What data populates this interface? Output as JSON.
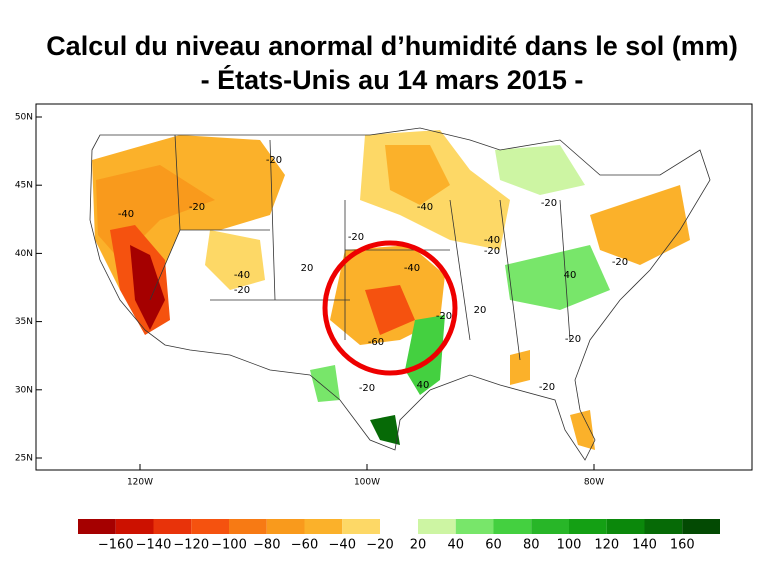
{
  "header": {
    "title_line1": "Calcul du niveau anormal d’humidité dans le sol (mm)",
    "title_line2": "- États-Unis au 14 mars 2015 -"
  },
  "map": {
    "lat_labels": [
      "50N",
      "45N",
      "40N",
      "35N",
      "30N",
      "25N"
    ],
    "lon_labels": [
      "120W",
      "100W",
      "80W"
    ],
    "contour_labels": [
      "-40",
      "-20",
      "-20",
      "-40",
      "-20",
      "20",
      "-20",
      "-40",
      "-40",
      "-40",
      "-20",
      "-20",
      "40",
      "-20",
      "-20",
      "20",
      "-60",
      "-20",
      "40",
      "-20",
      "-20"
    ]
  },
  "legend": {
    "negative": {
      "colors": [
        "#a50000",
        "#cc1100",
        "#e8330a",
        "#f5520f",
        "#f77a14",
        "#f99a1c",
        "#fbb12a",
        "#fdd866"
      ],
      "labels": [
        "−160",
        "−140",
        "−120",
        "−100",
        "−80",
        "−60",
        "−40",
        "−20"
      ]
    },
    "positive": {
      "colors": [
        "#cdf5a3",
        "#78e66a",
        "#44d040",
        "#28b628",
        "#14a014",
        "#0b880b",
        "#066a06",
        "#034a03"
      ],
      "labels": [
        "20",
        "40",
        "60",
        "80",
        "100",
        "120",
        "140",
        "160"
      ]
    }
  }
}
